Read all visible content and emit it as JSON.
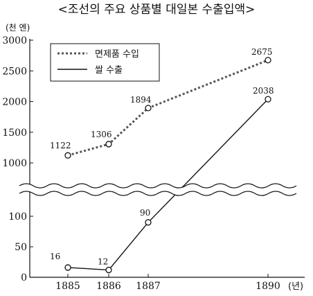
{
  "chart_data": {
    "type": "line",
    "title": "<조선의 주요 상품별 대일본 수출입액>",
    "ylabel": "(천 엔)",
    "x_unit": "(년)",
    "x": [
      "1885",
      "1886",
      "1887",
      "1890"
    ],
    "y_ticks_upper": [
      "3000",
      "2500",
      "2000",
      "1500",
      "1000"
    ],
    "y_ticks_lower": [
      "100",
      "50",
      "0"
    ],
    "axis_break": true,
    "series": [
      {
        "name": "면제품 수입",
        "style": "dotted",
        "color": "#555555",
        "values": [
          1122,
          1306,
          1894,
          2675
        ],
        "labels": [
          "1122",
          "1306",
          "1894",
          "2675"
        ]
      },
      {
        "name": "쌀 수출",
        "style": "solid",
        "color": "#111111",
        "values": [
          16,
          12,
          90,
          2038
        ],
        "labels": [
          "16",
          "12",
          "90",
          "2038"
        ]
      }
    ],
    "legend_position": "top-left"
  }
}
